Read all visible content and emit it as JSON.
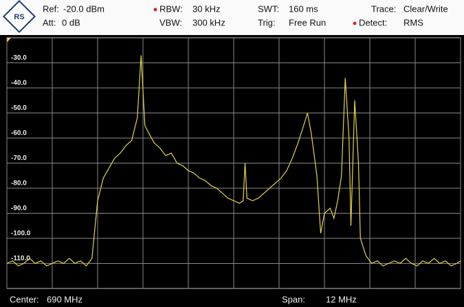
{
  "header": {
    "fields": [
      {
        "label": "Ref:",
        "value": "-20.0 dBm"
      },
      {
        "label": "Att:",
        "value": "0 dB"
      },
      {
        "label": "RBW:",
        "value": "30 kHz"
      },
      {
        "label": "VBW:",
        "value": "300 kHz"
      },
      {
        "label": "SWT:",
        "value": "160 ms"
      },
      {
        "label": "Trig:",
        "value": "Free Run"
      },
      {
        "label": "Trace:",
        "value": "Clear/Write"
      },
      {
        "label": "Detect:",
        "value": "RMS"
      }
    ]
  },
  "footer": {
    "center_label": "Center:",
    "center_value": "690 MHz",
    "span_label": "Span:",
    "span_value": "12 MHz"
  },
  "chart_data": {
    "type": "line",
    "x": [
      684.0,
      684.15,
      684.3,
      684.45,
      684.6,
      684.75,
      684.9,
      685.05,
      685.2,
      685.35,
      685.5,
      685.65,
      685.8,
      685.95,
      686.1,
      686.25,
      686.4,
      686.55,
      686.7,
      686.85,
      687.0,
      687.15,
      687.3,
      687.45,
      687.55,
      687.65,
      687.75,
      687.9,
      688.05,
      688.2,
      688.35,
      688.5,
      688.65,
      688.8,
      688.95,
      689.1,
      689.25,
      689.4,
      689.55,
      689.7,
      689.85,
      690.0,
      690.15,
      690.25,
      690.3,
      690.35,
      690.5,
      690.65,
      690.8,
      690.95,
      691.1,
      691.25,
      691.4,
      691.55,
      691.7,
      691.85,
      691.95,
      692.05,
      692.2,
      692.3,
      692.4,
      692.55,
      692.65,
      692.75,
      692.85,
      692.95,
      693.05,
      693.1,
      693.2,
      693.3,
      693.35,
      693.5,
      693.65,
      693.8,
      693.95,
      694.1,
      694.25,
      694.4,
      694.55,
      694.7,
      694.85,
      695.0,
      695.15,
      695.3,
      695.45,
      695.6,
      695.75,
      695.9,
      696.0
    ],
    "series": [
      {
        "color": "#e6d84a",
        "values": [
          -110,
          -109,
          -111,
          -110,
          -108,
          -110,
          -109,
          -111,
          -110,
          -109,
          -110,
          -108,
          -110,
          -109,
          -111,
          -108,
          -85,
          -76,
          -72,
          -68,
          -66,
          -63,
          -61,
          -52,
          -27,
          -55,
          -58,
          -62,
          -64,
          -67,
          -66,
          -70,
          -71,
          -73,
          -74,
          -76,
          -77,
          -79,
          -80,
          -82,
          -84,
          -85,
          -86,
          -85,
          -70,
          -84,
          -85,
          -84,
          -82,
          -80,
          -78,
          -76,
          -73,
          -68,
          -62,
          -55,
          -50,
          -58,
          -75,
          -98,
          -90,
          -88,
          -92,
          -85,
          -75,
          -36,
          -60,
          -95,
          -45,
          -70,
          -100,
          -107,
          -110,
          -109,
          -111,
          -110,
          -109,
          -110,
          -108,
          -110,
          -111,
          -109,
          -110,
          -108,
          -110,
          -109,
          -111,
          -110,
          -109
        ]
      }
    ],
    "xlim": [
      684,
      696
    ],
    "xticks": [
      684,
      685.2,
      686.4,
      687.6,
      688.8,
      690,
      691.2,
      692.4,
      693.6,
      694.8,
      696
    ],
    "ylim": [
      -120,
      -20
    ],
    "yticks": [
      {
        "value": -30,
        "label": "-30.0"
      },
      {
        "value": -40,
        "label": "-40.0"
      },
      {
        "value": -50,
        "label": "-50.0"
      },
      {
        "value": -60,
        "label": "-60.0"
      },
      {
        "value": -70,
        "label": "-70.0"
      },
      {
        "value": -80,
        "label": "-80.0"
      },
      {
        "value": -90,
        "label": "-90.0"
      },
      {
        "value": -100,
        "label": "-100.0"
      },
      {
        "value": -110,
        "label": "-110.0"
      }
    ],
    "grid": true
  }
}
